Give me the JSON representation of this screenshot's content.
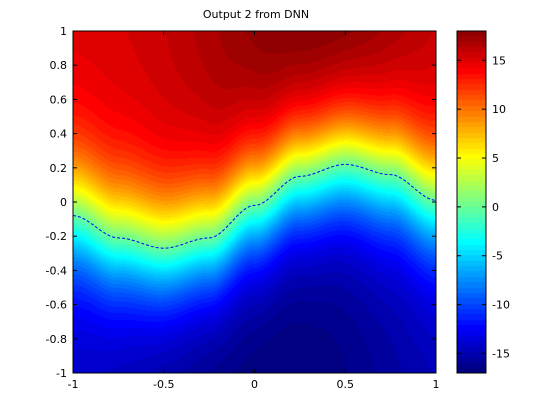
{
  "chart_data": {
    "type": "heatmap",
    "title": "Output 2 from DNN",
    "xlabel": "",
    "ylabel": "",
    "xlim": [
      -1,
      1
    ],
    "ylim": [
      -1,
      1
    ],
    "x_ticks": [
      -1,
      -0.5,
      0,
      0.5,
      1
    ],
    "x_tick_labels": [
      "-1",
      "-0.5",
      "0",
      "0.5",
      "1"
    ],
    "y_ticks": [
      -1,
      -0.8,
      -0.6,
      -0.4,
      -0.2,
      0,
      0.2,
      0.4,
      0.6,
      0.8,
      1
    ],
    "y_tick_labels": [
      "-1",
      "-0.8",
      "-0.6",
      "-0.4",
      "-0.2",
      "0",
      "0.2",
      "0.4",
      "0.6",
      "0.8",
      "1"
    ],
    "colormap": "jet",
    "clim": [
      -17,
      18
    ],
    "colorbar": {
      "ticks": [
        -15,
        -10,
        -5,
        0,
        5,
        10,
        15
      ],
      "tick_labels": [
        "-15",
        "-10",
        "-5",
        "0",
        "5",
        "10",
        "15"
      ]
    },
    "zero_contour": {
      "style": "dashed",
      "color": "#0000ff",
      "x": [
        -1,
        -0.75,
        -0.5,
        -0.25,
        0,
        0.25,
        0.5,
        0.75,
        1
      ],
      "y": [
        -0.08,
        -0.21,
        -0.27,
        -0.21,
        -0.02,
        0.15,
        0.22,
        0.16,
        0.01
      ]
    },
    "value_samples": [
      {
        "x": 0.2,
        "y": 1,
        "value": 18
      },
      {
        "x": 0.2,
        "y": -1,
        "value": -17
      }
    ]
  }
}
